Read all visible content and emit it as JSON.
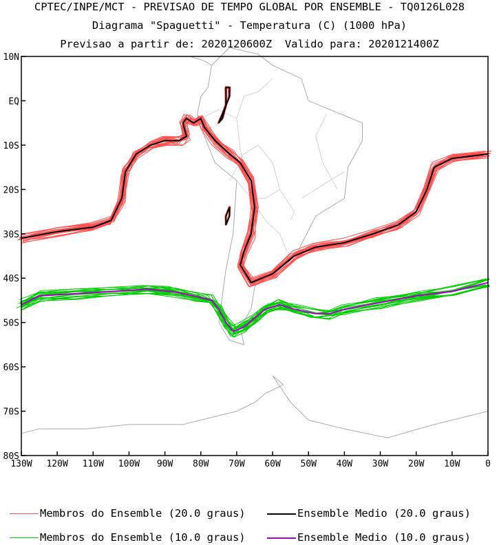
{
  "titles": {
    "line1": "CPTEC/INPE/MCT - PREVISAO DE TEMPO GLOBAL POR ENSEMBLE - TQ0126L028",
    "line2": "Diagrama \"Spaguetti\" - Temperatura (C) (1000 hPa)",
    "line3": "Previsao a partir de: 2020120600Z  Valido para: 2020121400Z"
  },
  "map": {
    "lon_range": [
      -130,
      0
    ],
    "lat_range": [
      -80,
      10
    ],
    "lat_ticks": [
      "10N",
      "EQ",
      "10S",
      "20S",
      "30S",
      "40S",
      "50S",
      "60S",
      "70S",
      "80S"
    ],
    "lon_ticks": [
      "130W",
      "120W",
      "110W",
      "100W",
      "90W",
      "80W",
      "70W",
      "60W",
      "50W",
      "40W",
      "30W",
      "20W",
      "10W",
      "0"
    ],
    "colors": {
      "land": "#aaaaaa",
      "members_20": "#ff5050",
      "mean_20": "#000000",
      "members_10": "#00cc00",
      "mean_10": "#aa00cc"
    }
  },
  "legend": {
    "members_20": "Membros do Ensemble (20.0 graus)",
    "mean_20": "Ensemble Medio (20.0 graus)",
    "members_10": "Membros do Ensemble (10.0 graus)",
    "mean_10": "Ensemble Medio (10.0 graus)"
  }
}
